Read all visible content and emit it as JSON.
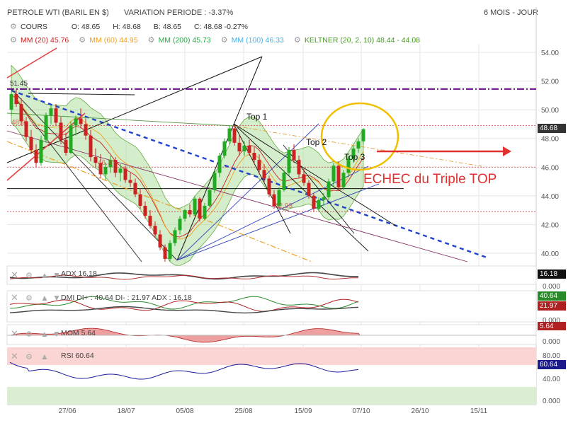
{
  "header": {
    "instrument": "PETROLE WTI (BARIL EN $)",
    "variation_label": "VARIATION PERIODE : -3.37%",
    "period": "6 MOIS - JOUR"
  },
  "ohlc": {
    "cours": "COURS",
    "open": "O: 48.65",
    "high": "H: 48.68",
    "low": "B: 48.65",
    "close": "C: 48.68 -0.27%"
  },
  "indicators": {
    "mm20": "MM (20) 45.76",
    "mm60": "MM (60) 44.95",
    "mm200": "MM (200) 45.73",
    "mm100": "MM (100) 46.33",
    "keltner": "KELTNER (20, 2, 10) 48.44 - 44.08"
  },
  "colors": {
    "up": "#22aa22",
    "down": "#cc2222",
    "mm20": "#cc2222",
    "mm60": "#f0a020",
    "mm200": "#22aa44",
    "mm100": "#4ab0e0",
    "keltner": "#66bb44",
    "annotation": "#e03030",
    "circle": "#f0c000"
  },
  "annotations": {
    "top1": "Top 1",
    "top2": "Top 2",
    "top3": "Top 3",
    "echec": "ECHEC du Triple TOP",
    "level_51": "51.45",
    "level_48": "48.9",
    "level_46": "46.3",
    "level_43": "42.93"
  },
  "price_tag": "48.68",
  "subpanels": {
    "adx": {
      "label": "ADX 16.18",
      "value": "16.18"
    },
    "dmi": {
      "label": "DMI DI+ : 40.64 DI- : 21.97 ADX : 16.18",
      "di_plus": "40.64",
      "di_minus": "21.97"
    },
    "mom": {
      "label": "MOM 5.64",
      "value": "5.64"
    },
    "rsi": {
      "label": "RSI 60.64",
      "value": "60.64"
    }
  },
  "rsi_axis": [
    "80.00",
    "40.00",
    "0.000"
  ],
  "zero_labels": [
    "0.000",
    "0.000",
    "0.000"
  ],
  "chart_data": {
    "type": "candlestick",
    "y_ticks": [
      "54.00",
      "52.00",
      "50.00",
      "48.00",
      "46.00",
      "44.00",
      "42.00",
      "40.00"
    ],
    "ylim": [
      39.4,
      54.6
    ],
    "x_ticks": [
      "27/06",
      "18/07",
      "05/08",
      "25/08",
      "15/09",
      "07/10",
      "26/10",
      "15/11"
    ],
    "candles": [
      [
        50.0,
        51.3,
        49.6,
        51.1
      ],
      [
        51.1,
        51.45,
        50.2,
        50.4
      ],
      [
        50.4,
        50.8,
        48.9,
        49.2
      ],
      [
        49.2,
        49.5,
        47.8,
        48.1
      ],
      [
        48.1,
        48.6,
        46.9,
        47.2
      ],
      [
        47.2,
        47.6,
        46.0,
        46.3
      ],
      [
        46.3,
        48.2,
        46.1,
        47.9
      ],
      [
        47.9,
        49.8,
        47.7,
        49.6
      ],
      [
        49.6,
        50.3,
        49.0,
        50.1
      ],
      [
        50.1,
        50.4,
        48.9,
        49.1
      ],
      [
        49.1,
        49.5,
        47.6,
        47.9
      ],
      [
        47.9,
        48.4,
        46.8,
        47.0
      ],
      [
        47.0,
        49.2,
        46.9,
        48.9
      ],
      [
        48.9,
        49.6,
        48.2,
        49.4
      ],
      [
        49.4,
        50.1,
        48.7,
        49.0
      ],
      [
        49.0,
        49.4,
        47.9,
        48.2
      ],
      [
        48.2,
        48.6,
        46.4,
        46.7
      ],
      [
        46.7,
        47.3,
        46.0,
        46.3
      ],
      [
        46.3,
        46.9,
        45.2,
        45.5
      ],
      [
        45.5,
        46.3,
        45.1,
        46.0
      ],
      [
        46.0,
        46.8,
        45.6,
        46.5
      ],
      [
        46.5,
        46.7,
        45.3,
        45.6
      ],
      [
        45.6,
        46.2,
        45.0,
        45.9
      ],
      [
        45.9,
        46.1,
        44.9,
        45.1
      ],
      [
        45.1,
        45.6,
        44.6,
        44.9
      ],
      [
        44.9,
        45.2,
        43.9,
        44.1
      ],
      [
        44.1,
        44.5,
        43.1,
        43.3
      ],
      [
        43.3,
        43.6,
        42.4,
        42.6
      ],
      [
        42.6,
        43.0,
        41.7,
        41.9
      ],
      [
        41.9,
        42.2,
        41.1,
        41.3
      ],
      [
        41.3,
        41.6,
        40.2,
        40.4
      ],
      [
        40.4,
        40.6,
        39.4,
        39.6
      ],
      [
        39.6,
        40.9,
        39.4,
        40.7
      ],
      [
        40.7,
        41.8,
        40.5,
        41.6
      ],
      [
        41.6,
        42.6,
        41.3,
        42.4
      ],
      [
        42.4,
        43.1,
        42.2,
        43.0
      ],
      [
        43.0,
        43.4,
        42.5,
        42.7
      ],
      [
        42.7,
        44.0,
        42.6,
        43.8
      ],
      [
        43.8,
        43.9,
        42.2,
        42.4
      ],
      [
        42.4,
        43.5,
        42.3,
        43.3
      ],
      [
        43.3,
        44.6,
        43.2,
        44.4
      ],
      [
        44.4,
        45.8,
        44.2,
        45.6
      ],
      [
        45.6,
        47.0,
        45.3,
        46.8
      ],
      [
        46.8,
        48.0,
        46.6,
        47.8
      ],
      [
        47.8,
        48.9,
        47.6,
        48.7
      ],
      [
        48.7,
        48.9,
        47.5,
        47.7
      ],
      [
        47.7,
        48.2,
        46.8,
        47.1
      ],
      [
        47.1,
        47.8,
        46.8,
        47.5
      ],
      [
        47.5,
        47.9,
        46.8,
        47.0
      ],
      [
        47.0,
        47.4,
        46.2,
        46.5
      ],
      [
        46.5,
        46.9,
        45.5,
        45.8
      ],
      [
        45.8,
        46.2,
        44.9,
        45.2
      ],
      [
        45.2,
        45.4,
        43.9,
        44.1
      ],
      [
        44.1,
        44.4,
        43.1,
        43.3
      ],
      [
        43.3,
        44.6,
        43.2,
        44.4
      ],
      [
        44.4,
        45.8,
        44.3,
        45.6
      ],
      [
        45.6,
        47.4,
        45.4,
        47.2
      ],
      [
        47.2,
        47.6,
        46.3,
        46.5
      ],
      [
        46.5,
        46.8,
        45.2,
        45.5
      ],
      [
        45.5,
        45.9,
        44.7,
        44.9
      ],
      [
        44.9,
        45.1,
        43.8,
        44.0
      ],
      [
        44.0,
        44.2,
        42.9,
        43.1
      ],
      [
        43.1,
        43.9,
        42.9,
        43.7
      ],
      [
        43.7,
        44.2,
        43.3,
        43.9
      ],
      [
        43.9,
        45.2,
        43.7,
        45.0
      ],
      [
        45.0,
        46.3,
        44.6,
        46.1
      ],
      [
        46.1,
        46.4,
        44.4,
        44.6
      ],
      [
        44.6,
        45.8,
        44.4,
        45.6
      ],
      [
        45.6,
        46.8,
        45.3,
        46.6
      ],
      [
        46.6,
        47.5,
        46.3,
        47.3
      ],
      [
        47.3,
        48.0,
        47.0,
        47.8
      ],
      [
        47.8,
        48.7,
        47.6,
        48.65
      ]
    ]
  }
}
